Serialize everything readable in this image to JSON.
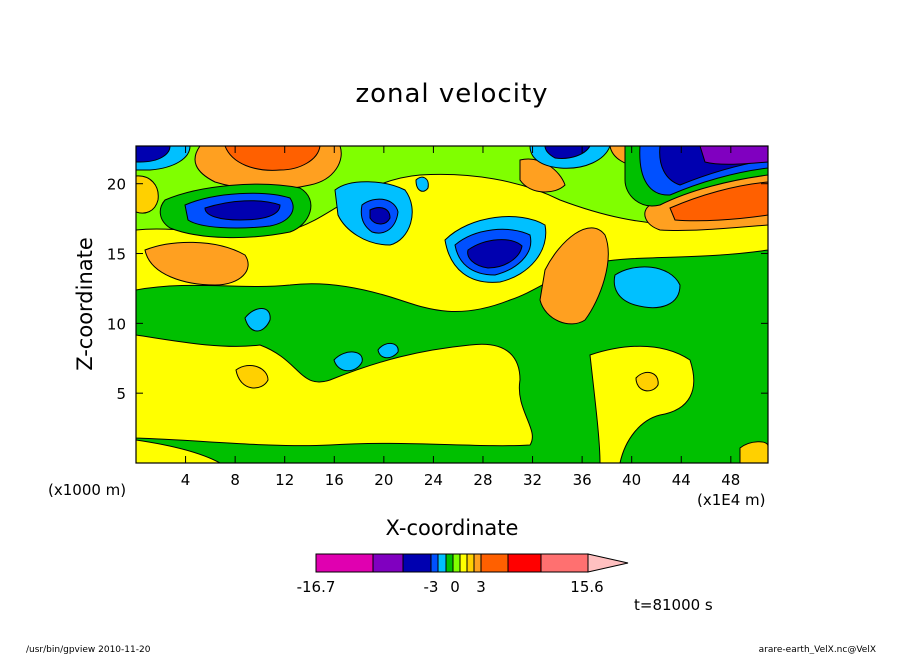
{
  "chart_data": {
    "type": "heatmap",
    "title": "zonal velocity",
    "xlabel": "X-coordinate",
    "ylabel": "Z-coordinate",
    "x_unit_left": "(x1000 m)",
    "x_unit_right": "(x1E4 m)",
    "xlim": [
      0,
      51
    ],
    "ylim": [
      0,
      22.7
    ],
    "xticks": [
      "4",
      "8",
      "12",
      "16",
      "20",
      "24",
      "28",
      "32",
      "36",
      "40",
      "44",
      "48"
    ],
    "yticks": [
      "5",
      "10",
      "15",
      "20"
    ],
    "colorbar": {
      "min_label": "-16.7",
      "max_label": "15.6",
      "mid_labels": [
        "-3",
        "0",
        "3"
      ],
      "levels": [
        {
          "color": "#e000b0"
        },
        {
          "color": "#8000c0"
        },
        {
          "color": "#0000b0"
        },
        {
          "color": "#0050ff"
        },
        {
          "color": "#00c0ff"
        },
        {
          "color": "#00c000"
        },
        {
          "color": "#80ff00"
        },
        {
          "color": "#ffff00"
        },
        {
          "color": "#ffd000"
        },
        {
          "color": "#ffa020"
        },
        {
          "color": "#ff6000"
        },
        {
          "color": "#ff0000"
        },
        {
          "color": "#ff7070"
        },
        {
          "color": "#ffc0c0"
        }
      ]
    },
    "time_label": "t=81000 s",
    "footer_left": "/usr/bin/gpview  2010-11-20",
    "footer_right": "arare-earth_VelX.nc@VelX"
  }
}
